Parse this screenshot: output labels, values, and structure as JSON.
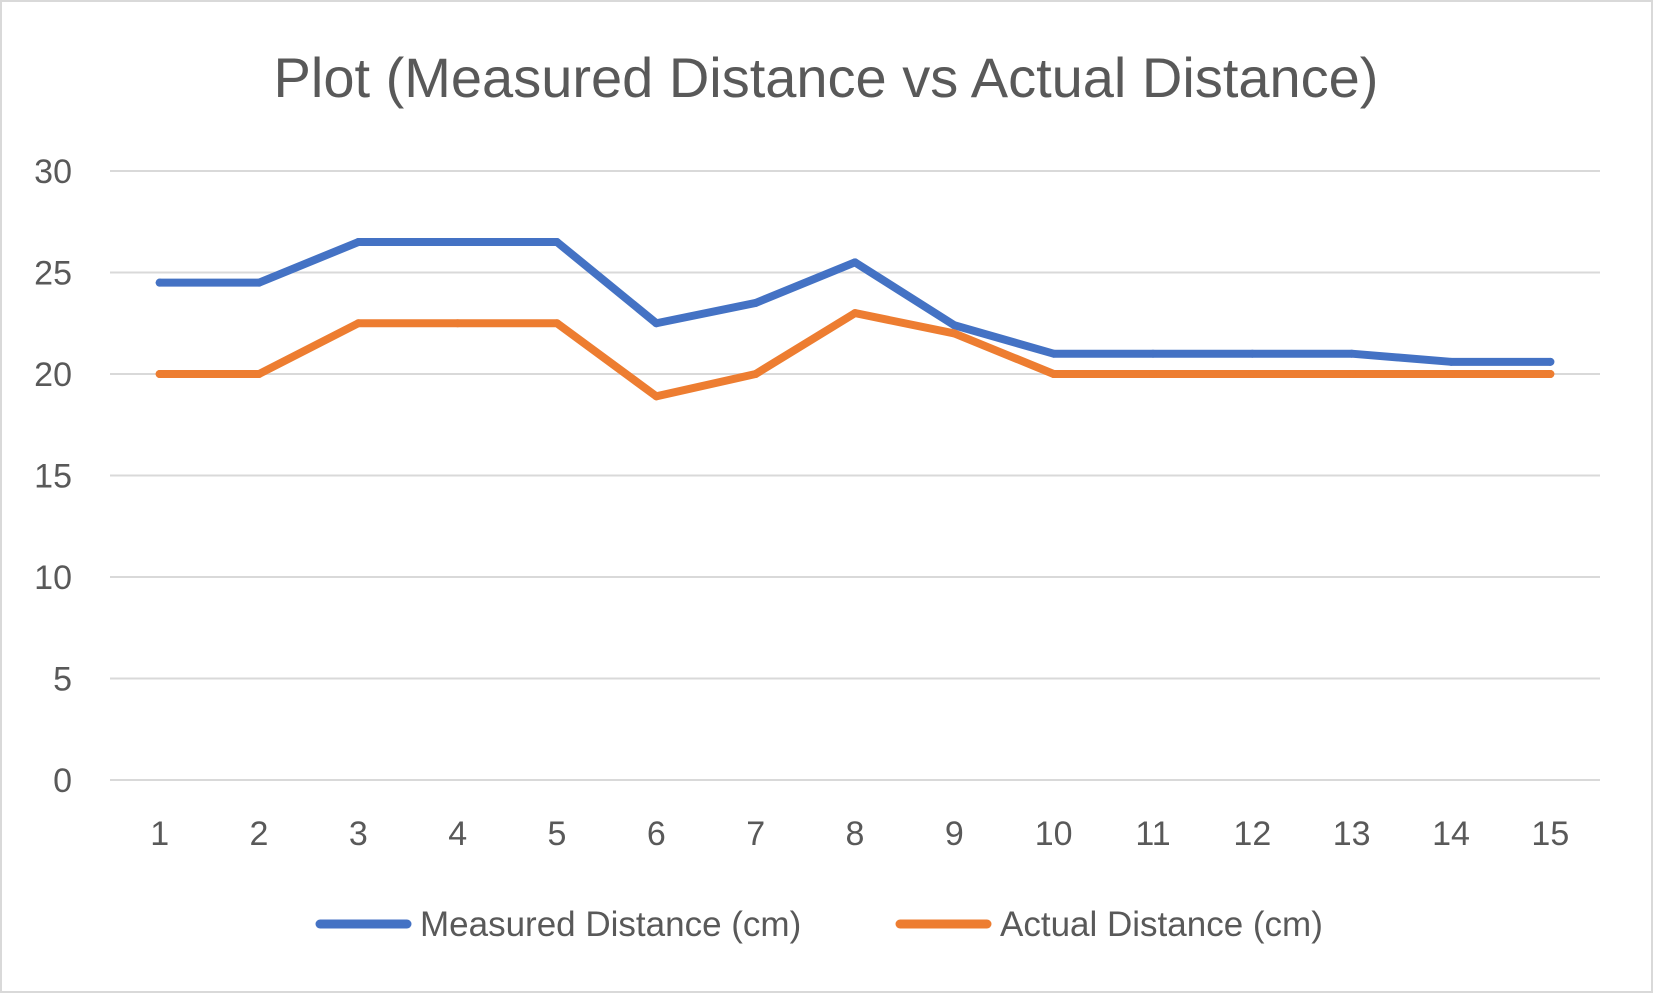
{
  "chart_data": {
    "type": "line",
    "title": "Plot (Measured Distance vs Actual Distance)",
    "xlabel": "",
    "ylabel": "",
    "categories": [
      "1",
      "2",
      "3",
      "4",
      "5",
      "6",
      "7",
      "8",
      "9",
      "10",
      "11",
      "12",
      "13",
      "14",
      "15"
    ],
    "series": [
      {
        "name": "Measured Distance (cm)",
        "color": "#4472C4",
        "values": [
          24.5,
          24.5,
          26.5,
          26.5,
          26.5,
          22.5,
          23.5,
          25.5,
          22.4,
          21,
          21,
          21,
          21,
          20.6,
          20.6
        ]
      },
      {
        "name": "Actual Distance (cm)",
        "color": "#ED7D31",
        "values": [
          20,
          20,
          22.5,
          22.5,
          22.5,
          18.9,
          20,
          23,
          22,
          20,
          20,
          20,
          20,
          20,
          20
        ]
      }
    ],
    "ylim": [
      0,
      30
    ],
    "yticks": [
      0,
      5,
      10,
      15,
      20,
      25,
      30
    ],
    "grid": true,
    "legend": "bottom"
  }
}
